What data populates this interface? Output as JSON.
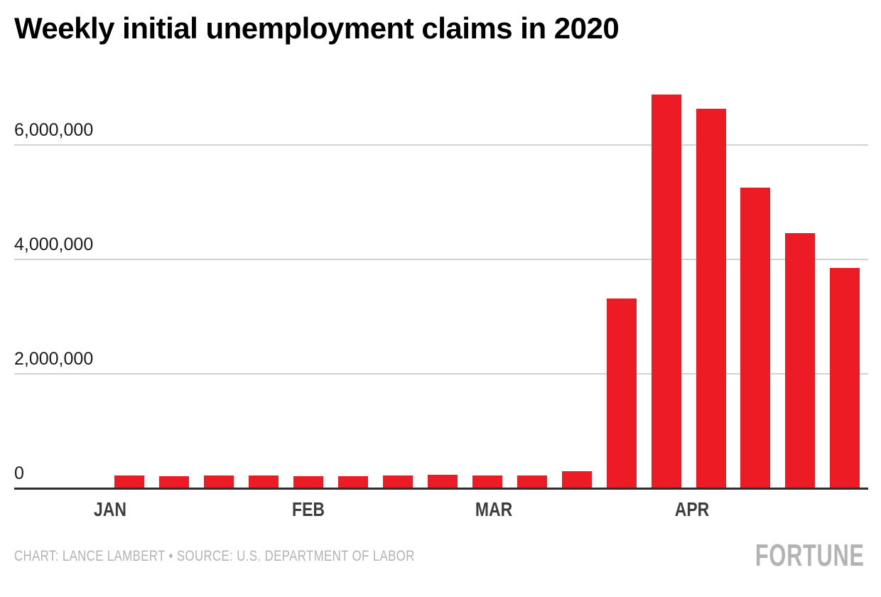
{
  "header": {
    "title": "Weekly initial unemployment claims in 2020"
  },
  "chart_data": {
    "type": "bar",
    "title": "Weekly initial unemployment claims in 2020",
    "xlabel": "",
    "ylabel": "",
    "ylim": [
      0,
      7000000
    ],
    "grid": "horizontal",
    "bar_color": "#ed1c24",
    "y_ticks": [
      {
        "value": 0,
        "label": "0"
      },
      {
        "value": 2000000,
        "label": "2,000,000"
      },
      {
        "value": 4000000,
        "label": "4,000,000"
      },
      {
        "value": 6000000,
        "label": "6,000,000"
      }
    ],
    "month_ticks": [
      {
        "date": "2020-01-01",
        "label": "JAN"
      },
      {
        "date": "2020-02-01",
        "label": "FEB"
      },
      {
        "date": "2020-03-01",
        "label": "MAR"
      },
      {
        "date": "2020-04-01",
        "label": "APR"
      }
    ],
    "points": [
      {
        "week_ending": "2020-01-04",
        "value": 214000
      },
      {
        "week_ending": "2020-01-11",
        "value": 204000
      },
      {
        "week_ending": "2020-01-18",
        "value": 211000
      },
      {
        "week_ending": "2020-01-25",
        "value": 212000
      },
      {
        "week_ending": "2020-02-01",
        "value": 201000
      },
      {
        "week_ending": "2020-02-08",
        "value": 204000
      },
      {
        "week_ending": "2020-02-15",
        "value": 215000
      },
      {
        "week_ending": "2020-02-22",
        "value": 219000
      },
      {
        "week_ending": "2020-02-29",
        "value": 217000
      },
      {
        "week_ending": "2020-03-07",
        "value": 211000
      },
      {
        "week_ending": "2020-03-14",
        "value": 282000
      },
      {
        "week_ending": "2020-03-21",
        "value": 3307000
      },
      {
        "week_ending": "2020-03-28",
        "value": 6867000
      },
      {
        "week_ending": "2020-04-04",
        "value": 6615000
      },
      {
        "week_ending": "2020-04-11",
        "value": 5245000
      },
      {
        "week_ending": "2020-04-18",
        "value": 4442000
      },
      {
        "week_ending": "2020-04-25",
        "value": 3839000
      }
    ]
  },
  "footer": {
    "credit": "CHART: LANCE LAMBERT • SOURCE: U.S. DEPARTMENT OF LABOR",
    "logo": "FORTUNE"
  }
}
